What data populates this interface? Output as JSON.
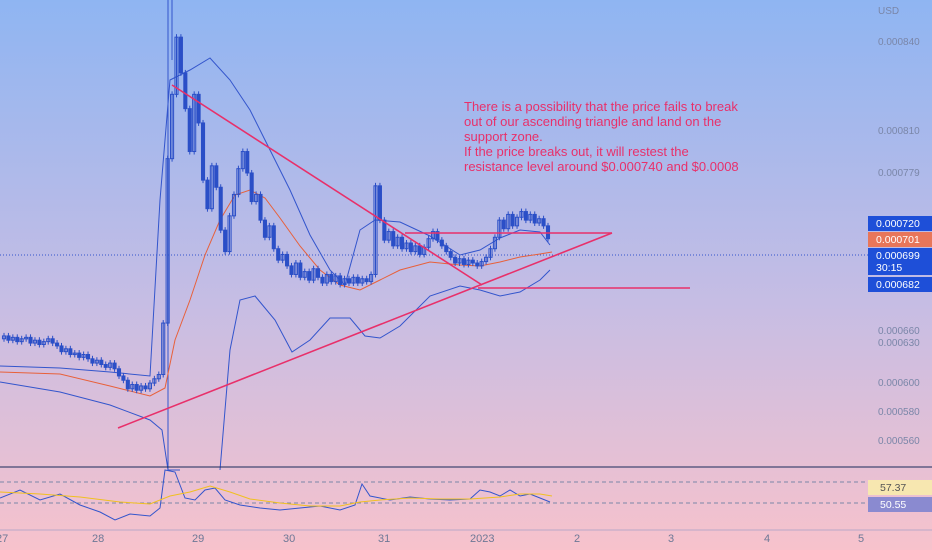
{
  "colors": {
    "bg_top": "#8fb5f2",
    "bg_mid": "#c6bde4",
    "bg_bottom": "#f7c2cc",
    "candle_up": "#2b4fc7",
    "candle_down": "#2b4fc7",
    "trendline": "#e8306a",
    "bollinger": "#3355cc",
    "ma": "#e8603a",
    "rsi": "#3355cc",
    "rsi_ma": "#f0c020",
    "current_badge": "#1e4fd8",
    "orange_badge": "#e8765a"
  },
  "currency_label": "USD",
  "annotation": {
    "lines": [
      "There is a possibility that the price fails to break",
      "out of our ascending triangle and land on the",
      "support zone.",
      "If the price breaks out, it will restest the",
      "resistance level around $0.000740 and $0.0008"
    ]
  },
  "price_badges": {
    "resistance": "0.000720",
    "ma_value": "0.000701",
    "current": "0.000699",
    "countdown": "30:15",
    "support": "0.000682"
  },
  "rsi_badges": {
    "rsi_ma": "57.37",
    "rsi": "50.55"
  },
  "chart_data": {
    "type": "candlestick",
    "price_axis": {
      "ticks": [
        "0.000840",
        "0.000810",
        "0.000779",
        "0.000720",
        "0.000699",
        "0.000682",
        "0.000660",
        "0.000630",
        "0.000600",
        "0.000580",
        "0.000560"
      ],
      "range": [
        0.00054,
        0.000866
      ]
    },
    "x_ticks": [
      "27",
      "28",
      "29",
      "30",
      "31",
      "2023",
      "2",
      "3",
      "4",
      "5"
    ],
    "candles": [
      [
        0.000629,
        0.000631
      ],
      [
        0.000631,
        0.000628
      ],
      [
        0.000628,
        0.00063
      ],
      [
        0.00063,
        0.000627
      ],
      [
        0.000627,
        0.000629
      ],
      [
        0.000629,
        0.00063
      ],
      [
        0.00063,
        0.000626
      ],
      [
        0.000626,
        0.000628
      ],
      [
        0.000628,
        0.000625
      ],
      [
        0.000625,
        0.000627
      ],
      [
        0.000627,
        0.000629
      ],
      [
        0.000629,
        0.000626
      ],
      [
        0.000626,
        0.000624
      ],
      [
        0.000624,
        0.00062
      ],
      [
        0.00062,
        0.000622
      ],
      [
        0.000622,
        0.000618
      ],
      [
        0.000618,
        0.000619
      ],
      [
        0.000619,
        0.000616
      ],
      [
        0.000616,
        0.000618
      ],
      [
        0.000618,
        0.000615
      ],
      [
        0.000615,
        0.000612
      ],
      [
        0.000612,
        0.000614
      ],
      [
        0.000614,
        0.000611
      ],
      [
        0.000611,
        0.000609
      ],
      [
        0.000609,
        0.000612
      ],
      [
        0.000612,
        0.000608
      ],
      [
        0.000608,
        0.000603
      ],
      [
        0.000603,
        0.0006
      ],
      [
        0.0006,
        0.000594
      ],
      [
        0.000594,
        0.000597
      ],
      [
        0.000597,
        0.000593
      ],
      [
        0.000593,
        0.000596
      ],
      [
        0.000596,
        0.000594
      ],
      [
        0.000594,
        0.000598
      ],
      [
        0.000598,
        0.000601
      ],
      [
        0.000601,
        0.000604
      ],
      [
        0.000604,
        0.00064
      ],
      [
        0.00064,
        0.000755
      ],
      [
        0.000755,
        0.0008
      ],
      [
        0.0008,
        0.00084
      ],
      [
        0.00084,
        0.000815
      ],
      [
        0.000815,
        0.00079
      ],
      [
        0.00079,
        0.00076
      ],
      [
        0.00076,
        0.0008
      ],
      [
        0.0008,
        0.00078
      ],
      [
        0.00078,
        0.00074
      ],
      [
        0.00074,
        0.00072
      ],
      [
        0.00072,
        0.00075
      ],
      [
        0.00075,
        0.000735
      ],
      [
        0.000735,
        0.000705
      ],
      [
        0.000705,
        0.00069
      ],
      [
        0.00069,
        0.000715
      ],
      [
        0.000715,
        0.00073
      ],
      [
        0.00073,
        0.000748
      ],
      [
        0.000748,
        0.00076
      ],
      [
        0.00076,
        0.000745
      ],
      [
        0.000745,
        0.000725
      ],
      [
        0.000725,
        0.00073
      ],
      [
        0.00073,
        0.000712
      ],
      [
        0.000712,
        0.0007
      ],
      [
        0.0007,
        0.000708
      ],
      [
        0.000708,
        0.000692
      ],
      [
        0.000692,
        0.000684
      ],
      [
        0.000684,
        0.000688
      ],
      [
        0.000688,
        0.00068
      ],
      [
        0.00068,
        0.000674
      ],
      [
        0.000674,
        0.000682
      ],
      [
        0.000682,
        0.000672
      ],
      [
        0.000672,
        0.000676
      ],
      [
        0.000676,
        0.00067
      ],
      [
        0.00067,
        0.000678
      ],
      [
        0.000678,
        0.000672
      ],
      [
        0.000672,
        0.000668
      ],
      [
        0.000668,
        0.000674
      ],
      [
        0.000674,
        0.000669
      ],
      [
        0.000669,
        0.000673
      ],
      [
        0.000673,
        0.000667
      ],
      [
        0.000667,
        0.000671
      ],
      [
        0.000671,
        0.000668
      ],
      [
        0.000668,
        0.000672
      ],
      [
        0.000672,
        0.000668
      ],
      [
        0.000668,
        0.000671
      ],
      [
        0.000671,
        0.000669
      ],
      [
        0.000669,
        0.000674
      ],
      [
        0.000674,
        0.000736
      ],
      [
        0.000736,
        0.000712
      ],
      [
        0.000712,
        0.000698
      ],
      [
        0.000698,
        0.000704
      ],
      [
        0.000704,
        0.000694
      ],
      [
        0.000694,
        0.0007
      ],
      [
        0.0007,
        0.000692
      ],
      [
        0.000692,
        0.000696
      ],
      [
        0.000696,
        0.00069
      ],
      [
        0.00069,
        0.000694
      ],
      [
        0.000694,
        0.000688
      ],
      [
        0.000688,
        0.000693
      ],
      [
        0.000693,
        0.000699
      ],
      [
        0.000699,
        0.000704
      ],
      [
        0.000704,
        0.000698
      ],
      [
        0.000698,
        0.000694
      ],
      [
        0.000694,
        0.00069
      ],
      [
        0.00069,
        0.000686
      ],
      [
        0.000686,
        0.000682
      ],
      [
        0.000682,
        0.000685
      ],
      [
        0.000685,
        0.000681
      ],
      [
        0.000681,
        0.000684
      ],
      [
        0.000684,
        0.000682
      ],
      [
        0.000682,
        0.00068
      ],
      [
        0.00068,
        0.000683
      ],
      [
        0.000683,
        0.000686
      ],
      [
        0.000686,
        0.000692
      ],
      [
        0.000692,
        0.0007
      ],
      [
        0.0007,
        0.000712
      ],
      [
        0.000712,
        0.000706
      ],
      [
        0.000706,
        0.000716
      ],
      [
        0.000716,
        0.000708
      ],
      [
        0.000708,
        0.000714
      ],
      [
        0.000714,
        0.000718
      ],
      [
        0.000718,
        0.000712
      ],
      [
        0.000712,
        0.000716
      ],
      [
        0.000716,
        0.00071
      ],
      [
        0.00071,
        0.000713
      ],
      [
        0.000713,
        0.000708
      ],
      [
        0.000708,
        0.000699
      ]
    ],
    "trendlines": [
      {
        "from": [
          0.4,
          0.000841
        ],
        "to": [
          0.66,
          0.000688
        ]
      },
      {
        "from": [
          0.13,
          0.000566
        ],
        "to": [
          0.66,
          0.000712
        ]
      },
      {
        "from": [
          0.44,
          0.000715
        ],
        "to": [
          0.66,
          0.000715
        ]
      },
      {
        "from": [
          0.52,
          0.000682
        ],
        "to": [
          0.74,
          0.000682
        ]
      }
    ]
  }
}
